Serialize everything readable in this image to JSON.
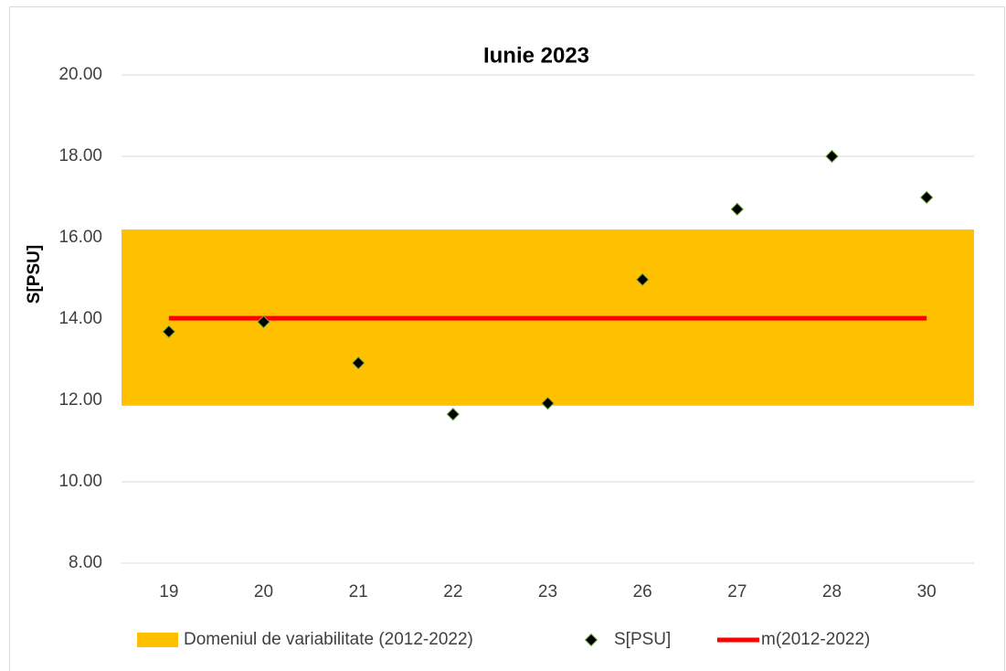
{
  "chart_data": {
    "type": "combo",
    "title": "Iunie 2023",
    "y_label": "S[PSU]",
    "categories": [
      "19",
      "20",
      "21",
      "22",
      "23",
      "26",
      "27",
      "28",
      "30"
    ],
    "band": {
      "name": "Domeniul de variabilitate (2012-2022)",
      "color": "#ffc000",
      "low": 11.87,
      "high": 16.2
    },
    "series": [
      {
        "name": "S[PSU]",
        "type": "scatter",
        "color": "#000000",
        "values": [
          13.69,
          13.93,
          12.92,
          11.66,
          11.93,
          14.97,
          16.7,
          18.0,
          16.99
        ]
      },
      {
        "name": "m(2012-2022)",
        "type": "line",
        "color": "#ff0000",
        "values": [
          14.02,
          14.02,
          14.02,
          14.02,
          14.02,
          14.02,
          14.02,
          14.02,
          14.02
        ]
      }
    ],
    "ylim": [
      8,
      20
    ],
    "yticks": [
      {
        "value": 8,
        "label": "8.00"
      },
      {
        "value": 10,
        "label": "10.00"
      },
      {
        "value": 12,
        "label": "12.00"
      },
      {
        "value": 14,
        "label": "14.00"
      },
      {
        "value": 16,
        "label": "16.00"
      },
      {
        "value": 18,
        "label": "18.00"
      },
      {
        "value": 20,
        "label": "20.00"
      }
    ],
    "grid": true,
    "legend": "bottom"
  }
}
